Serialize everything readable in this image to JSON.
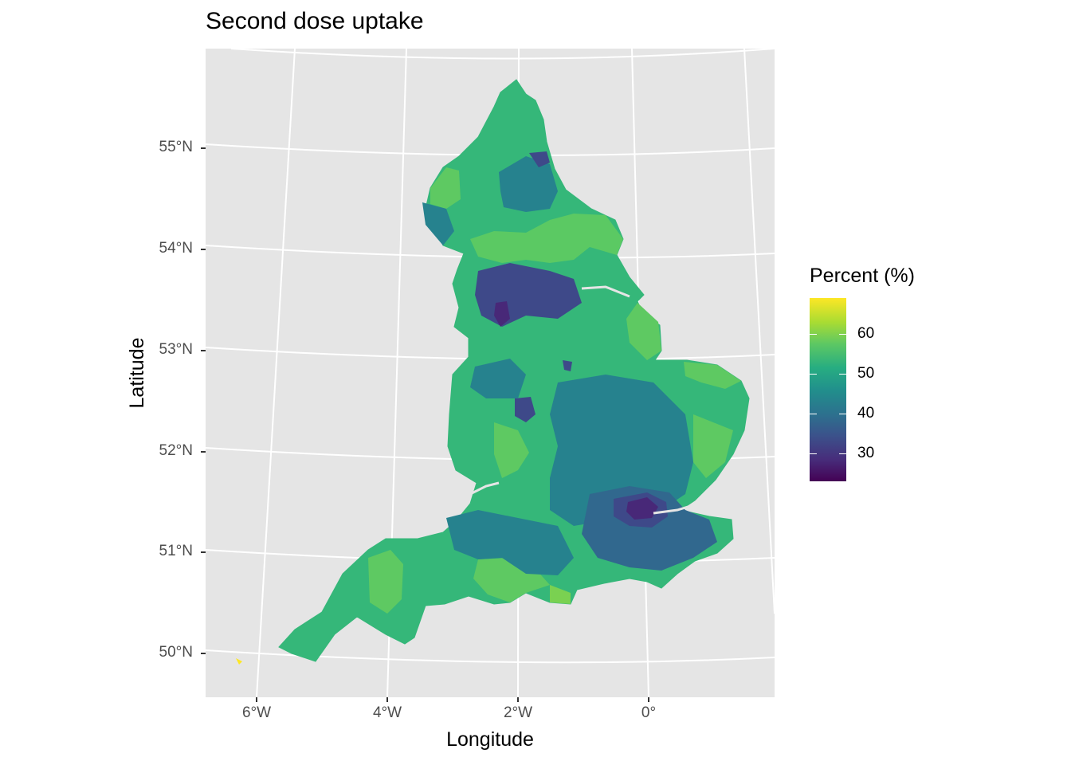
{
  "title": "Second dose uptake",
  "axes": {
    "x_title": "Longitude",
    "y_title": "Latitude",
    "x_ticks": [
      {
        "value": -6,
        "label": "6°W"
      },
      {
        "value": -4,
        "label": "4°W"
      },
      {
        "value": -2,
        "label": "2°W"
      },
      {
        "value": 0,
        "label": "0°"
      }
    ],
    "y_ticks": [
      {
        "value": 55,
        "label": "55°N"
      },
      {
        "value": 54,
        "label": "54°N"
      },
      {
        "value": 53,
        "label": "53°N"
      },
      {
        "value": 52,
        "label": "52°N"
      },
      {
        "value": 51,
        "label": "51°N"
      },
      {
        "value": 50,
        "label": "50°N"
      }
    ]
  },
  "legend": {
    "title": "Percent (%)",
    "scale": "viridis",
    "range": [
      23,
      69
    ],
    "ticks": [
      60,
      50,
      40,
      30
    ],
    "tick_labels": [
      "60",
      "50",
      "40",
      "30"
    ]
  },
  "colors": {
    "panel_background": "#e5e5e5",
    "grid": "#ffffff",
    "high": "#fde725",
    "low": "#440154"
  }
}
